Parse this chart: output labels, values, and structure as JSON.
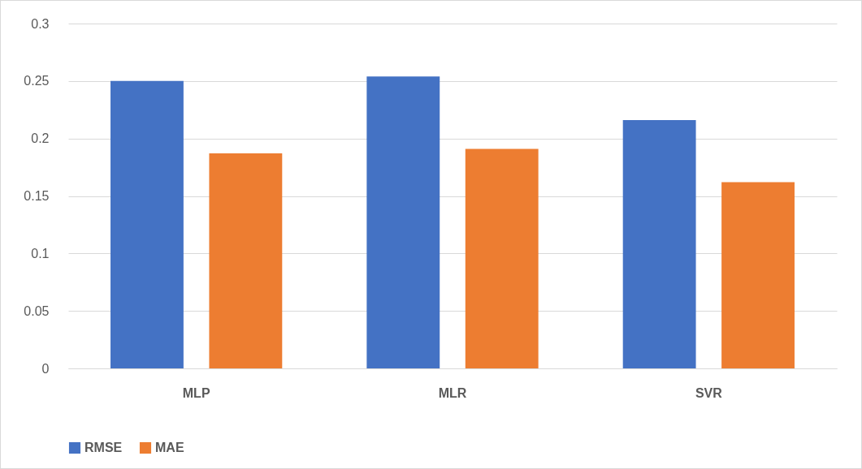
{
  "chart_data": {
    "type": "bar",
    "categories": [
      "MLP",
      "MLR",
      "SVR"
    ],
    "series": [
      {
        "name": "RMSE",
        "color": "#4472c4",
        "values": [
          0.25,
          0.254,
          0.216
        ]
      },
      {
        "name": "MAE",
        "color": "#ed7d31",
        "values": [
          0.187,
          0.191,
          0.162
        ]
      }
    ],
    "ylim": [
      0,
      0.3
    ],
    "yticks": [
      0,
      0.05,
      0.1,
      0.15,
      0.2,
      0.25,
      0.3
    ],
    "grid": "y",
    "legend": "bottom"
  }
}
